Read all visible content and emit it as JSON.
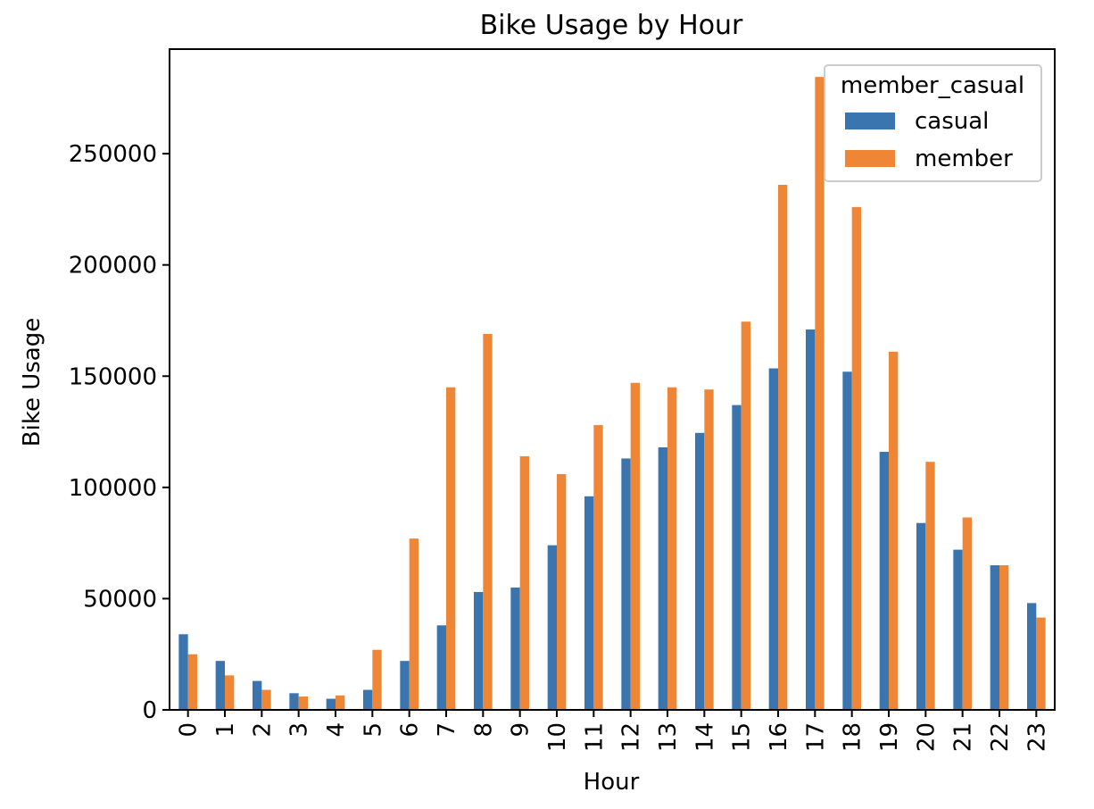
{
  "chart_data": {
    "type": "bar",
    "title": "Bike Usage by Hour",
    "xlabel": "Hour",
    "ylabel": "Bike Usage",
    "categories": [
      "0",
      "1",
      "2",
      "3",
      "4",
      "5",
      "6",
      "7",
      "8",
      "9",
      "10",
      "11",
      "12",
      "13",
      "14",
      "15",
      "16",
      "17",
      "18",
      "19",
      "20",
      "21",
      "22",
      "23"
    ],
    "ylim": [
      0,
      297000
    ],
    "yticks": [
      0,
      50000,
      100000,
      150000,
      200000,
      250000
    ],
    "ytick_labels": [
      "0",
      "50000",
      "100000",
      "150000",
      "200000",
      "250000"
    ],
    "grid": false,
    "legend": {
      "title": "member_casual",
      "position": "top-right"
    },
    "series": [
      {
        "name": "casual",
        "color": "#3b75af",
        "values": [
          34000,
          22000,
          13000,
          7500,
          5000,
          9000,
          22000,
          38000,
          53000,
          55000,
          74000,
          96000,
          113000,
          118000,
          124500,
          137000,
          153500,
          171000,
          152000,
          116000,
          84000,
          72000,
          65000,
          48000
        ]
      },
      {
        "name": "member",
        "color": "#ef8636",
        "values": [
          25000,
          15500,
          9000,
          6000,
          6500,
          27000,
          77000,
          145000,
          169000,
          114000,
          106000,
          128000,
          147000,
          145000,
          144000,
          174500,
          236000,
          284500,
          226000,
          161000,
          111500,
          86500,
          65000,
          41500
        ]
      }
    ]
  }
}
